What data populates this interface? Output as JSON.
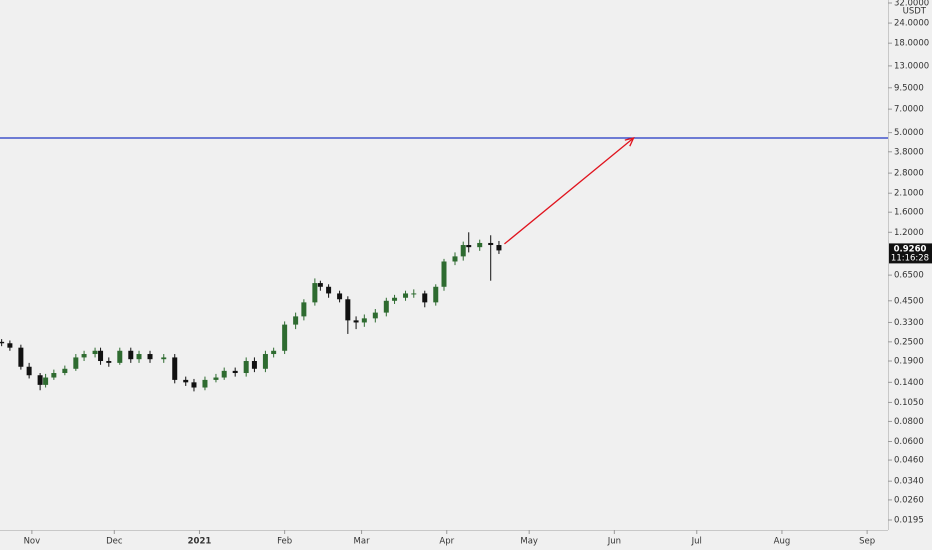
{
  "chart_data": {
    "type": "candlestick",
    "log_scale": true,
    "currency": "USDT",
    "xlim": [
      -11.6,
      311.6
    ],
    "xticks": [
      {
        "value": 0,
        "label": "Nov"
      },
      {
        "value": 30,
        "label": "Dec"
      },
      {
        "value": 61,
        "label": "2021"
      },
      {
        "value": 92,
        "label": "Feb"
      },
      {
        "value": 120,
        "label": "Mar"
      },
      {
        "value": 151,
        "label": "Apr"
      },
      {
        "value": 181,
        "label": "May"
      },
      {
        "value": 212,
        "label": "Jun"
      },
      {
        "value": 242,
        "label": "Jul"
      },
      {
        "value": 273,
        "label": "Aug"
      },
      {
        "value": 304,
        "label": "Sep"
      }
    ],
    "ylim": [
      0.0169,
      33.4
    ],
    "yticks": [
      {
        "value": 32,
        "label": "32.0000"
      },
      {
        "value": 24,
        "label": "24.0000"
      },
      {
        "value": 18,
        "label": "18.0000"
      },
      {
        "value": 13,
        "label": "13.0000"
      },
      {
        "value": 9.5,
        "label": "9.5000"
      },
      {
        "value": 7,
        "label": "7.0000"
      },
      {
        "value": 5,
        "label": "5.0000"
      },
      {
        "value": 3.8,
        "label": "3.8000"
      },
      {
        "value": 2.8,
        "label": "2.8000"
      },
      {
        "value": 2.1,
        "label": "2.1000"
      },
      {
        "value": 1.6,
        "label": "1.6000"
      },
      {
        "value": 1.2,
        "label": "1.2000"
      },
      {
        "value": 0.65,
        "label": "0.6500"
      },
      {
        "value": 0.45,
        "label": "0.4500"
      },
      {
        "value": 0.33,
        "label": "0.3300"
      },
      {
        "value": 0.25,
        "label": "0.2500"
      },
      {
        "value": 0.19,
        "label": "0.1900"
      },
      {
        "value": 0.14,
        "label": "0.1400"
      },
      {
        "value": 0.105,
        "label": "0.1050"
      },
      {
        "value": 0.08,
        "label": "0.0800"
      },
      {
        "value": 0.06,
        "label": "0.0600"
      },
      {
        "value": 0.046,
        "label": "0.0460"
      },
      {
        "value": 0.034,
        "label": "0.0340"
      },
      {
        "value": 0.026,
        "label": "0.0260"
      },
      {
        "value": 0.0195,
        "label": "0.0195"
      }
    ],
    "up_color": "#2e6b30",
    "down_color": "#111111",
    "x": [
      -11,
      -8,
      -4,
      -1,
      3,
      5,
      8,
      12,
      16,
      19,
      23,
      25,
      28,
      32,
      36,
      39,
      43,
      48,
      52,
      56,
      59,
      63,
      67,
      70,
      74,
      78,
      81,
      85,
      88,
      92,
      96,
      99,
      103,
      105,
      108,
      112,
      115,
      118,
      121,
      125,
      129,
      132,
      136,
      139,
      143,
      147,
      150,
      154,
      157,
      159,
      163,
      167,
      170
    ],
    "open": [
      0.25,
      0.245,
      0.23,
      0.175,
      0.155,
      0.135,
      0.15,
      0.16,
      0.17,
      0.2,
      0.21,
      0.22,
      0.19,
      0.185,
      0.22,
      0.195,
      0.21,
      0.195,
      0.2,
      0.145,
      0.14,
      0.13,
      0.145,
      0.15,
      0.165,
      0.16,
      0.19,
      0.17,
      0.21,
      0.22,
      0.32,
      0.36,
      0.44,
      0.58,
      0.55,
      0.5,
      0.46,
      0.34,
      0.33,
      0.35,
      0.38,
      0.45,
      0.47,
      0.5,
      0.5,
      0.44,
      0.55,
      0.79,
      0.85,
      1.0,
      0.97,
      1.03,
      1.0
    ],
    "high": [
      0.26,
      0.255,
      0.24,
      0.185,
      0.16,
      0.158,
      0.168,
      0.178,
      0.21,
      0.22,
      0.23,
      0.23,
      0.2,
      0.23,
      0.23,
      0.22,
      0.22,
      0.21,
      0.21,
      0.152,
      0.147,
      0.152,
      0.158,
      0.173,
      0.173,
      0.2,
      0.2,
      0.22,
      0.23,
      0.335,
      0.38,
      0.46,
      0.62,
      0.6,
      0.57,
      0.52,
      0.48,
      0.36,
      0.37,
      0.4,
      0.47,
      0.49,
      0.52,
      0.53,
      0.52,
      0.57,
      0.82,
      0.9,
      1.05,
      1.2,
      1.08,
      1.15,
      1.06
    ],
    "low": [
      0.235,
      0.22,
      0.168,
      0.148,
      0.125,
      0.13,
      0.145,
      0.155,
      0.165,
      0.19,
      0.2,
      0.18,
      0.175,
      0.18,
      0.185,
      0.185,
      0.185,
      0.185,
      0.138,
      0.133,
      0.123,
      0.125,
      0.14,
      0.145,
      0.152,
      0.152,
      0.162,
      0.162,
      0.2,
      0.21,
      0.3,
      0.34,
      0.42,
      0.52,
      0.47,
      0.44,
      0.28,
      0.3,
      0.31,
      0.33,
      0.36,
      0.43,
      0.45,
      0.47,
      0.41,
      0.42,
      0.52,
      0.75,
      0.8,
      0.9,
      0.92,
      0.6,
      0.88
    ],
    "close": [
      0.245,
      0.23,
      0.175,
      0.155,
      0.135,
      0.15,
      0.16,
      0.17,
      0.2,
      0.21,
      0.22,
      0.19,
      0.185,
      0.22,
      0.195,
      0.21,
      0.195,
      0.2,
      0.145,
      0.14,
      0.13,
      0.145,
      0.15,
      0.165,
      0.16,
      0.19,
      0.17,
      0.21,
      0.22,
      0.32,
      0.36,
      0.44,
      0.58,
      0.55,
      0.5,
      0.46,
      0.34,
      0.33,
      0.35,
      0.38,
      0.45,
      0.47,
      0.5,
      0.5,
      0.44,
      0.55,
      0.79,
      0.85,
      1.0,
      0.97,
      1.03,
      1.0,
      0.926
    ],
    "horizontal_line": {
      "value": 4.63,
      "color": "#1f35c4"
    },
    "arrow": {
      "x": [
        172,
        219
      ],
      "y": [
        1.016,
        4.63
      ],
      "color": "#e0141e"
    },
    "price_label": {
      "value": 0.926,
      "label": "0.9260"
    },
    "countdown": "11:16:28"
  }
}
